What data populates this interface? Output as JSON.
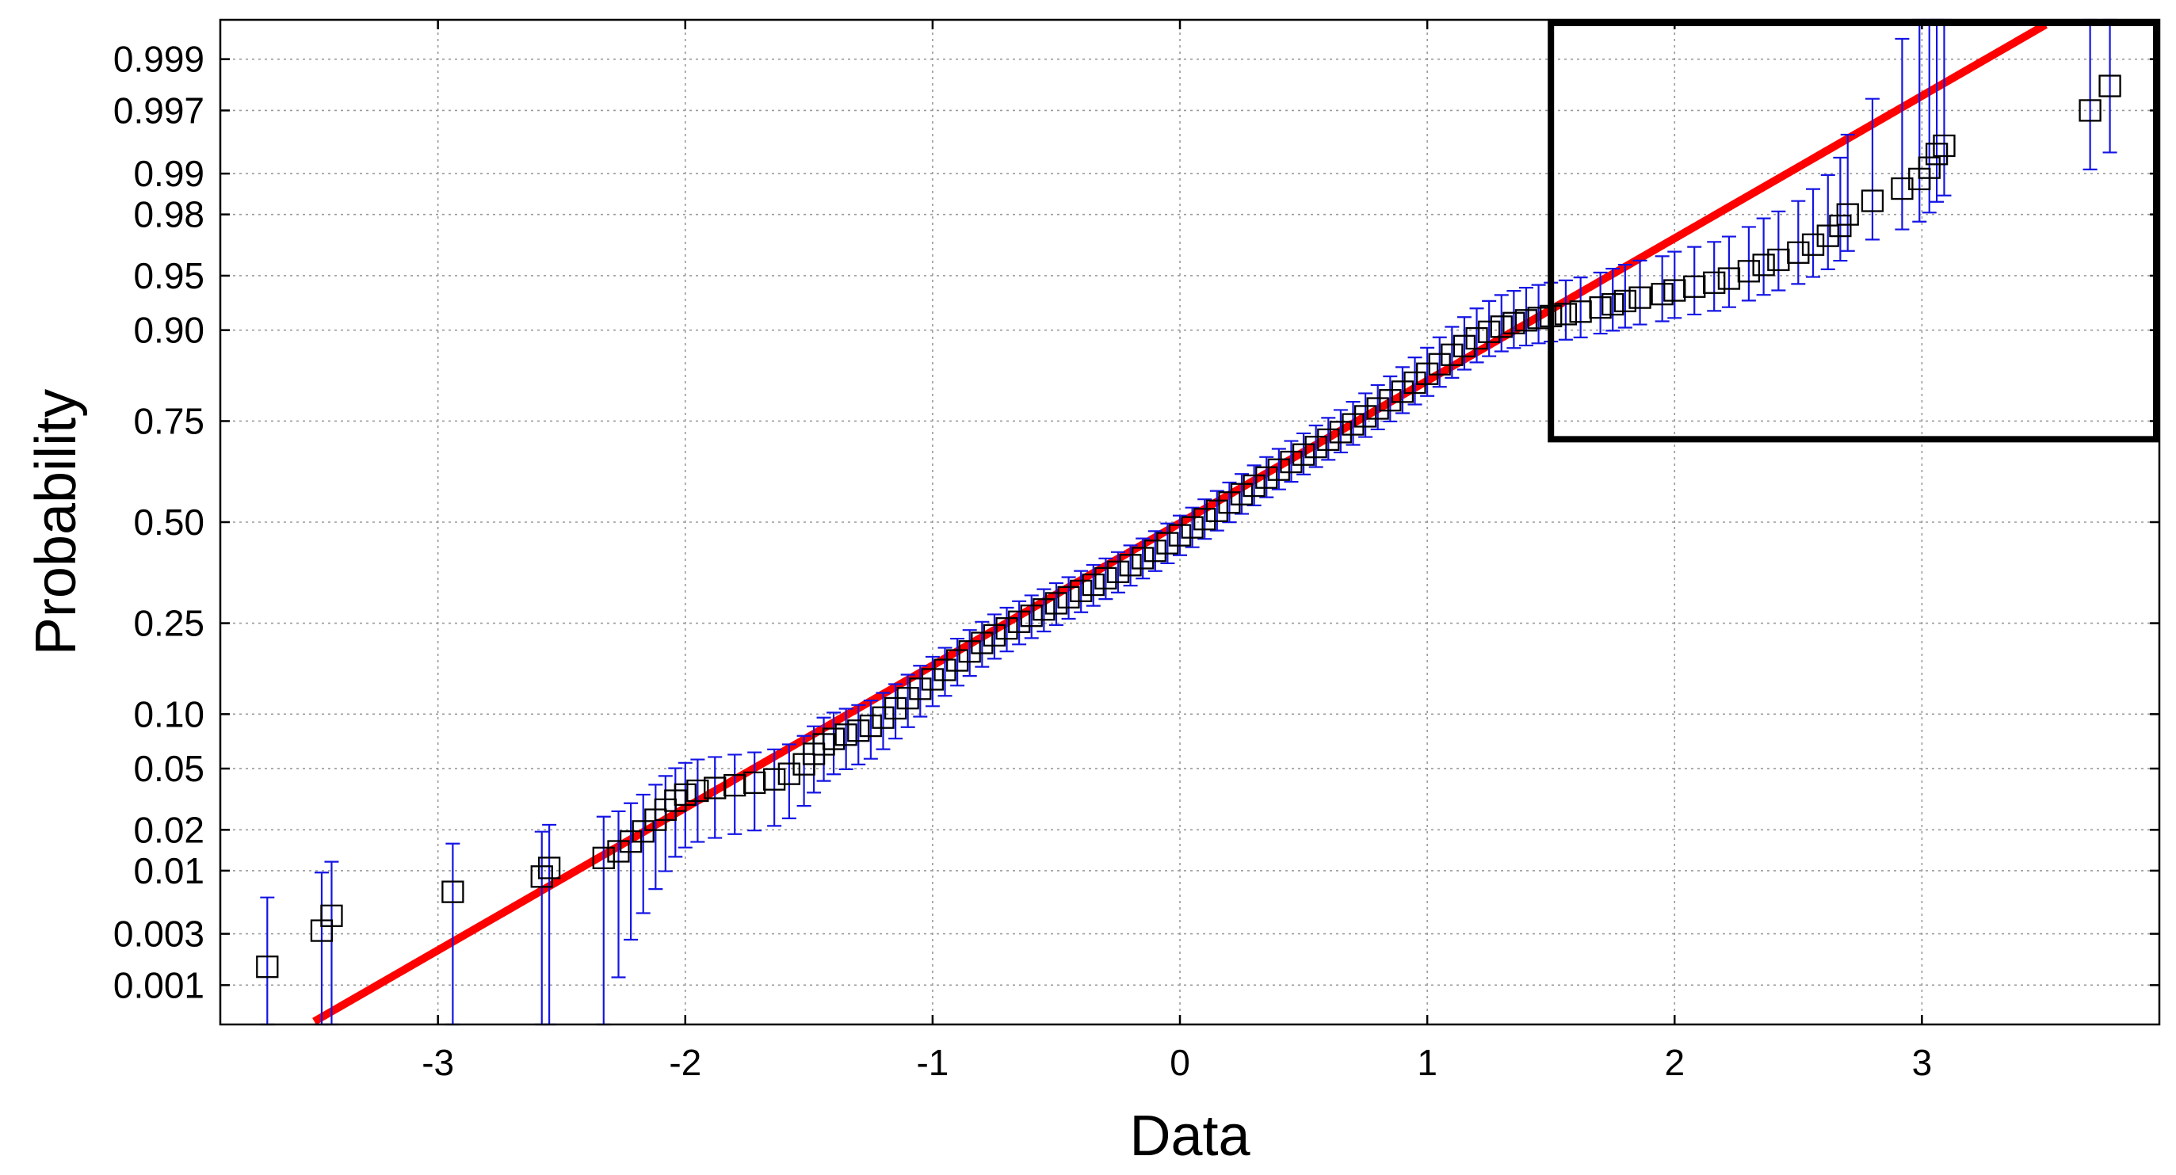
{
  "chart_data": {
    "type": "scatter",
    "title": "",
    "xlabel": "Data",
    "ylabel": "Probability",
    "xlim": [
      -3.88,
      3.96
    ],
    "y_scale": "normal-probability",
    "ylim": [
      0.0004,
      0.9996
    ],
    "grid": true,
    "x_ticks": [
      -3,
      -2,
      -1,
      0,
      1,
      2,
      3
    ],
    "y_ticks": [
      0.001,
      0.003,
      0.01,
      0.02,
      0.05,
      0.1,
      0.25,
      0.5,
      0.75,
      0.9,
      0.95,
      0.98,
      0.99,
      0.997,
      0.999
    ],
    "x_tick_labels": [
      "-3",
      "-2",
      "-1",
      "0",
      "1",
      "2",
      "3"
    ],
    "y_tick_labels": [
      "0.001",
      "0.003",
      "0.01",
      "0.02",
      "0.05",
      "0.10",
      "0.25",
      "0.50",
      "0.75",
      "0.90",
      "0.95",
      "0.98",
      "0.99",
      "0.997",
      "0.999"
    ],
    "marker": "open-square",
    "marker_color": "#000000",
    "error_bar_color": "#1414e6",
    "fit_line_color": "#ff0000",
    "fit_line": {
      "x": [
        -3.5,
        3.5
      ],
      "y": [
        0.00043,
        0.99955
      ]
    },
    "highlight_box": {
      "x": [
        1.5,
        3.96
      ],
      "y": [
        0.71,
        0.9996
      ],
      "color": "#000000"
    },
    "points": [
      {
        "x": -3.69,
        "y": 0.0015
      },
      {
        "x": -3.47,
        "y": 0.0032
      },
      {
        "x": -3.43,
        "y": 0.0043
      },
      {
        "x": -2.94,
        "y": 0.0068
      },
      {
        "x": -2.58,
        "y": 0.009
      },
      {
        "x": -2.55,
        "y": 0.0105
      },
      {
        "x": -2.33,
        "y": 0.0125
      },
      {
        "x": -2.27,
        "y": 0.014
      },
      {
        "x": -2.22,
        "y": 0.0165
      },
      {
        "x": -2.17,
        "y": 0.0195
      },
      {
        "x": -2.12,
        "y": 0.0235
      },
      {
        "x": -2.08,
        "y": 0.0275
      },
      {
        "x": -2.04,
        "y": 0.0315
      },
      {
        "x": -2.0,
        "y": 0.0345
      },
      {
        "x": -1.95,
        "y": 0.0365
      },
      {
        "x": -1.88,
        "y": 0.038
      },
      {
        "x": -1.8,
        "y": 0.0395
      },
      {
        "x": -1.72,
        "y": 0.041
      },
      {
        "x": -1.64,
        "y": 0.043
      },
      {
        "x": -1.58,
        "y": 0.0465
      },
      {
        "x": -1.52,
        "y": 0.053
      },
      {
        "x": -1.48,
        "y": 0.061
      },
      {
        "x": -1.44,
        "y": 0.069
      },
      {
        "x": -1.4,
        "y": 0.074
      },
      {
        "x": -1.35,
        "y": 0.078
      },
      {
        "x": -1.3,
        "y": 0.082
      },
      {
        "x": -1.25,
        "y": 0.087
      },
      {
        "x": -1.2,
        "y": 0.096
      },
      {
        "x": -1.15,
        "y": 0.107
      },
      {
        "x": -1.1,
        "y": 0.12
      },
      {
        "x": -1.05,
        "y": 0.133
      },
      {
        "x": -1.0,
        "y": 0.147
      },
      {
        "x": -0.95,
        "y": 0.162
      },
      {
        "x": -0.9,
        "y": 0.178
      },
      {
        "x": -0.85,
        "y": 0.194
      },
      {
        "x": -0.8,
        "y": 0.21
      },
      {
        "x": -0.75,
        "y": 0.225
      },
      {
        "x": -0.7,
        "y": 0.239
      },
      {
        "x": -0.65,
        "y": 0.253
      },
      {
        "x": -0.6,
        "y": 0.266
      },
      {
        "x": -0.55,
        "y": 0.28
      },
      {
        "x": -0.5,
        "y": 0.294
      },
      {
        "x": -0.45,
        "y": 0.308
      },
      {
        "x": -0.4,
        "y": 0.323
      },
      {
        "x": -0.35,
        "y": 0.338
      },
      {
        "x": -0.3,
        "y": 0.354
      },
      {
        "x": -0.25,
        "y": 0.37
      },
      {
        "x": -0.2,
        "y": 0.387
      },
      {
        "x": -0.15,
        "y": 0.405
      },
      {
        "x": -0.1,
        "y": 0.424
      },
      {
        "x": -0.05,
        "y": 0.444
      },
      {
        "x": 0.0,
        "y": 0.465
      },
      {
        "x": 0.05,
        "y": 0.486
      },
      {
        "x": 0.1,
        "y": 0.508
      },
      {
        "x": 0.15,
        "y": 0.53
      },
      {
        "x": 0.2,
        "y": 0.552
      },
      {
        "x": 0.25,
        "y": 0.574
      },
      {
        "x": 0.3,
        "y": 0.596
      },
      {
        "x": 0.35,
        "y": 0.617
      },
      {
        "x": 0.4,
        "y": 0.637
      },
      {
        "x": 0.45,
        "y": 0.656
      },
      {
        "x": 0.5,
        "y": 0.674
      },
      {
        "x": 0.55,
        "y": 0.692
      },
      {
        "x": 0.6,
        "y": 0.709
      },
      {
        "x": 0.65,
        "y": 0.726
      },
      {
        "x": 0.7,
        "y": 0.743
      },
      {
        "x": 0.75,
        "y": 0.76
      },
      {
        "x": 0.8,
        "y": 0.776
      },
      {
        "x": 0.85,
        "y": 0.792
      },
      {
        "x": 0.9,
        "y": 0.808
      },
      {
        "x": 0.95,
        "y": 0.824
      },
      {
        "x": 1.0,
        "y": 0.839
      },
      {
        "x": 1.05,
        "y": 0.854
      },
      {
        "x": 1.1,
        "y": 0.868
      },
      {
        "x": 1.15,
        "y": 0.88
      },
      {
        "x": 1.2,
        "y": 0.89
      },
      {
        "x": 1.25,
        "y": 0.898
      },
      {
        "x": 1.3,
        "y": 0.904
      },
      {
        "x": 1.35,
        "y": 0.908
      },
      {
        "x": 1.4,
        "y": 0.911
      },
      {
        "x": 1.45,
        "y": 0.9135
      },
      {
        "x": 1.5,
        "y": 0.9155
      },
      {
        "x": 1.56,
        "y": 0.9175
      },
      {
        "x": 1.62,
        "y": 0.92
      },
      {
        "x": 1.7,
        "y": 0.924
      },
      {
        "x": 1.75,
        "y": 0.927
      },
      {
        "x": 1.8,
        "y": 0.93
      },
      {
        "x": 1.86,
        "y": 0.933
      },
      {
        "x": 1.95,
        "y": 0.936
      },
      {
        "x": 2.0,
        "y": 0.939
      },
      {
        "x": 2.08,
        "y": 0.942
      },
      {
        "x": 2.16,
        "y": 0.945
      },
      {
        "x": 2.22,
        "y": 0.948
      },
      {
        "x": 2.3,
        "y": 0.953
      },
      {
        "x": 2.36,
        "y": 0.957
      },
      {
        "x": 2.42,
        "y": 0.96
      },
      {
        "x": 2.5,
        "y": 0.964
      },
      {
        "x": 2.56,
        "y": 0.968
      },
      {
        "x": 2.62,
        "y": 0.972
      },
      {
        "x": 2.67,
        "y": 0.976
      },
      {
        "x": 2.7,
        "y": 0.98
      },
      {
        "x": 2.8,
        "y": 0.984
      },
      {
        "x": 2.92,
        "y": 0.987
      },
      {
        "x": 2.99,
        "y": 0.989
      },
      {
        "x": 3.03,
        "y": 0.991
      },
      {
        "x": 3.06,
        "y": 0.993
      },
      {
        "x": 3.09,
        "y": 0.994
      },
      {
        "x": 3.68,
        "y": 0.997
      },
      {
        "x": 3.76,
        "y": 0.9982
      }
    ]
  }
}
